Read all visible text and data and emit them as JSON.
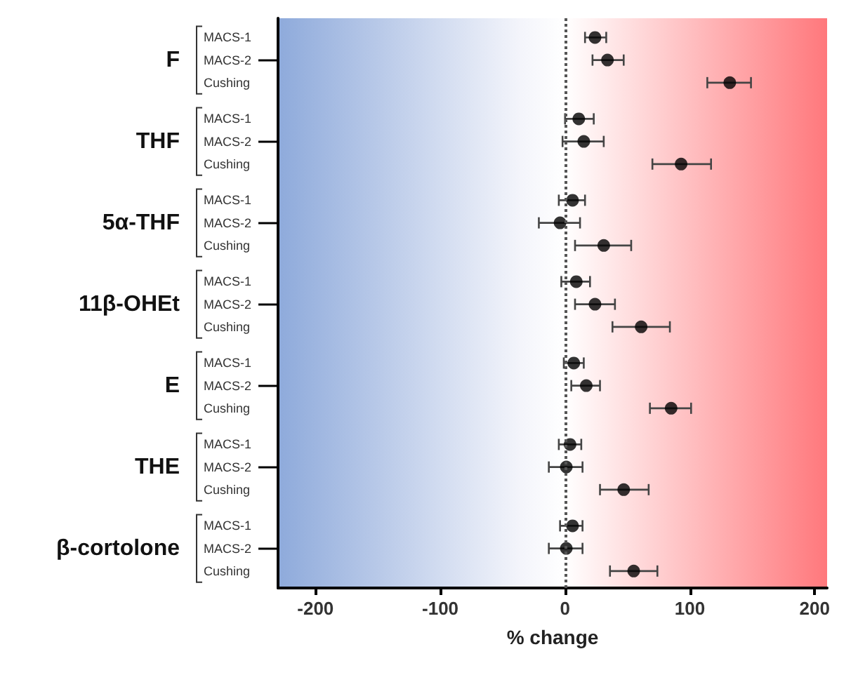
{
  "chart_data": {
    "type": "scatter",
    "orientation": "horizontal",
    "xlabel": "% change",
    "annotations": [
      "F",
      "THF",
      "5α-THF",
      "11β-OHEt",
      "E",
      "THE",
      "β-cortolone"
    ],
    "categories": [
      "MACS-1",
      "MACS-2",
      "Cushing",
      "MACS-1",
      "MACS-2",
      "Cushing",
      "MACS-1",
      "MACS-2",
      "Cushing",
      "MACS-1",
      "MACS-2",
      "Cushing",
      "MACS-1",
      "MACS-2",
      "Cushing",
      "MACS-1",
      "MACS-2",
      "Cushing",
      "MACS-1",
      "MACS-2",
      "Cushing"
    ],
    "series": [
      {
        "color": "#000000",
        "values": [
          24,
          34,
          132,
          11,
          15,
          93,
          6,
          -4,
          31,
          9,
          24,
          61,
          7,
          17,
          85,
          4,
          1,
          47,
          6,
          1,
          55
        ],
        "errors": [
          [
            16,
            33
          ],
          [
            22,
            47
          ],
          [
            114,
            149
          ],
          [
            0,
            23
          ],
          [
            -2,
            31
          ],
          [
            70,
            117
          ],
          [
            -5,
            16
          ],
          [
            -21,
            12
          ],
          [
            8,
            53
          ],
          [
            -3,
            20
          ],
          [
            8,
            40
          ],
          [
            38,
            84
          ],
          [
            -1,
            15
          ],
          [
            5,
            28
          ],
          [
            68,
            101
          ],
          [
            -5,
            13
          ],
          [
            -13,
            14
          ],
          [
            28,
            67
          ],
          [
            -4,
            14
          ],
          [
            -13,
            14
          ],
          [
            36,
            74
          ]
        ]
      }
    ],
    "xlim": [
      -230,
      210
    ],
    "xticks": [
      -200,
      -100,
      0,
      100,
      200
    ],
    "grid": false,
    "marker": "circle",
    "ref_lines": [
      {
        "axis": "x",
        "value": 0,
        "line_style": "dotted",
        "color": "#555555"
      }
    ]
  }
}
